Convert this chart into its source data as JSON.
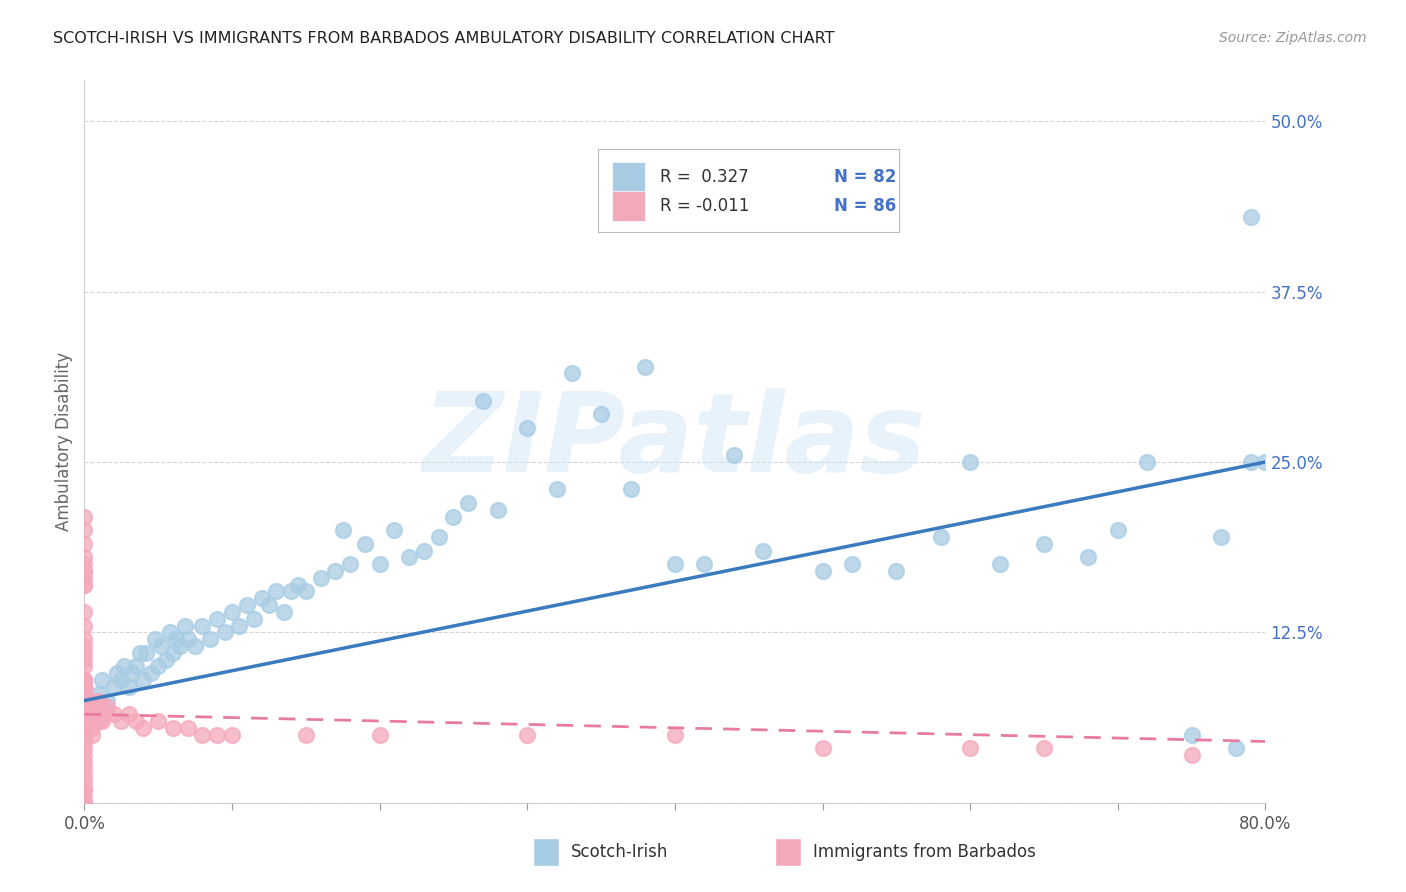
{
  "title": "SCOTCH-IRISH VS IMMIGRANTS FROM BARBADOS AMBULATORY DISABILITY CORRELATION CHART",
  "source": "Source: ZipAtlas.com",
  "ylabel": "Ambulatory Disability",
  "ytick_vals": [
    0.0,
    0.125,
    0.25,
    0.375,
    0.5
  ],
  "ytick_labels": [
    "",
    "12.5%",
    "25.0%",
    "37.5%",
    "50.0%"
  ],
  "xtick_left": "0.0%",
  "xtick_right": "80.0%",
  "blue_scatter_color": "#a8cce4",
  "pink_scatter_color": "#f4a9ba",
  "blue_line_color": "#3a7abf",
  "pink_line_color": "#e87ca0",
  "ytick_color": "#4472c4",
  "xlim": [
    0.0,
    0.8
  ],
  "ylim": [
    0.0,
    0.53
  ],
  "watermark": "ZIPatlas",
  "legend_blue_r": "R =  0.327",
  "legend_blue_n": "N = 82",
  "legend_pink_r": "R = -0.011",
  "legend_pink_n": "N = 86",
  "blue_line_y0": 0.075,
  "blue_line_y1": 0.25,
  "pink_line_y0": 0.065,
  "pink_line_y1": 0.045,
  "scotch_irish_x": [
    0.005,
    0.008,
    0.01,
    0.012,
    0.015,
    0.02,
    0.022,
    0.025,
    0.027,
    0.03,
    0.032,
    0.035,
    0.038,
    0.04,
    0.042,
    0.045,
    0.048,
    0.05,
    0.052,
    0.055,
    0.058,
    0.06,
    0.062,
    0.065,
    0.068,
    0.07,
    0.075,
    0.08,
    0.085,
    0.09,
    0.095,
    0.1,
    0.105,
    0.11,
    0.115,
    0.12,
    0.125,
    0.13,
    0.135,
    0.14,
    0.145,
    0.15,
    0.16,
    0.17,
    0.175,
    0.18,
    0.19,
    0.2,
    0.21,
    0.22,
    0.23,
    0.24,
    0.25,
    0.26,
    0.27,
    0.28,
    0.3,
    0.32,
    0.33,
    0.35,
    0.37,
    0.38,
    0.4,
    0.42,
    0.44,
    0.46,
    0.5,
    0.52,
    0.55,
    0.58,
    0.6,
    0.62,
    0.65,
    0.68,
    0.7,
    0.72,
    0.75,
    0.77,
    0.78,
    0.79,
    0.79,
    0.8
  ],
  "scotch_irish_y": [
    0.065,
    0.075,
    0.08,
    0.09,
    0.075,
    0.085,
    0.095,
    0.09,
    0.1,
    0.085,
    0.095,
    0.1,
    0.11,
    0.09,
    0.11,
    0.095,
    0.12,
    0.1,
    0.115,
    0.105,
    0.125,
    0.11,
    0.12,
    0.115,
    0.13,
    0.12,
    0.115,
    0.13,
    0.12,
    0.135,
    0.125,
    0.14,
    0.13,
    0.145,
    0.135,
    0.15,
    0.145,
    0.155,
    0.14,
    0.155,
    0.16,
    0.155,
    0.165,
    0.17,
    0.2,
    0.175,
    0.19,
    0.175,
    0.2,
    0.18,
    0.185,
    0.195,
    0.21,
    0.22,
    0.295,
    0.215,
    0.275,
    0.23,
    0.315,
    0.285,
    0.23,
    0.32,
    0.175,
    0.175,
    0.255,
    0.185,
    0.17,
    0.175,
    0.17,
    0.195,
    0.25,
    0.175,
    0.19,
    0.18,
    0.2,
    0.25,
    0.05,
    0.195,
    0.04,
    0.25,
    0.43,
    0.25
  ],
  "barbados_x": [
    0.0,
    0.0,
    0.0,
    0.0,
    0.0,
    0.0,
    0.0,
    0.0,
    0.0,
    0.0,
    0.0,
    0.0,
    0.0,
    0.0,
    0.0,
    0.0,
    0.0,
    0.0,
    0.0,
    0.0,
    0.0,
    0.0,
    0.0,
    0.0,
    0.0,
    0.0,
    0.0,
    0.0,
    0.0,
    0.0,
    0.0,
    0.0,
    0.0,
    0.0,
    0.0,
    0.0,
    0.0,
    0.0,
    0.0,
    0.0,
    0.0,
    0.0,
    0.0,
    0.0,
    0.0,
    0.0,
    0.0,
    0.0,
    0.005,
    0.005,
    0.005,
    0.005,
    0.005,
    0.005,
    0.007,
    0.007,
    0.008,
    0.008,
    0.009,
    0.009,
    0.01,
    0.01,
    0.01,
    0.01,
    0.012,
    0.013,
    0.015,
    0.02,
    0.025,
    0.03,
    0.035,
    0.04,
    0.05,
    0.06,
    0.07,
    0.08,
    0.09,
    0.1,
    0.15,
    0.2,
    0.3,
    0.4,
    0.5,
    0.6,
    0.65,
    0.75
  ],
  "barbados_y": [
    0.0,
    0.0,
    0.0,
    0.005,
    0.01,
    0.01,
    0.015,
    0.02,
    0.025,
    0.03,
    0.035,
    0.04,
    0.045,
    0.05,
    0.055,
    0.06,
    0.065,
    0.07,
    0.075,
    0.08,
    0.085,
    0.09,
    0.1,
    0.105,
    0.11,
    0.115,
    0.12,
    0.13,
    0.14,
    0.16,
    0.165,
    0.17,
    0.175,
    0.18,
    0.19,
    0.2,
    0.21,
    0.17,
    0.16,
    0.09,
    0.09,
    0.085,
    0.085,
    0.08,
    0.075,
    0.07,
    0.065,
    0.06,
    0.05,
    0.055,
    0.06,
    0.065,
    0.07,
    0.075,
    0.065,
    0.07,
    0.065,
    0.07,
    0.065,
    0.065,
    0.06,
    0.065,
    0.07,
    0.075,
    0.06,
    0.065,
    0.07,
    0.065,
    0.06,
    0.065,
    0.06,
    0.055,
    0.06,
    0.055,
    0.055,
    0.05,
    0.05,
    0.05,
    0.05,
    0.05,
    0.05,
    0.05,
    0.04,
    0.04,
    0.04,
    0.035
  ]
}
